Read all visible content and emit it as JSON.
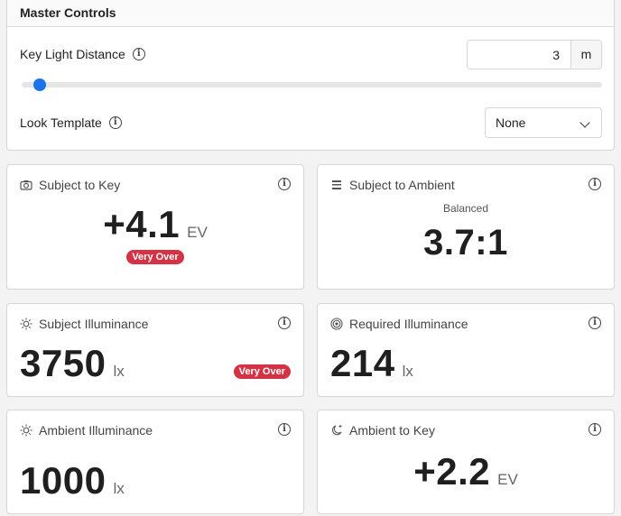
{
  "master": {
    "title": "Master Controls",
    "distance_label": "Key Light Distance",
    "distance_value": "3",
    "distance_unit": "m",
    "slider_fraction": 0.02,
    "template_label": "Look Template",
    "template_value": "None"
  },
  "cards": {
    "subject_to_key": {
      "title": "Subject to Key",
      "value": "+4.1",
      "unit": "EV",
      "badge": "Very Over",
      "icon": "camera-icon"
    },
    "subject_to_ambient": {
      "title": "Subject to Ambient",
      "subtitle": "Balanced",
      "value": "3.7:1",
      "icon": "bars-icon"
    },
    "subject_illuminance": {
      "title": "Subject Illuminance",
      "value": "3750",
      "unit": "lx",
      "badge": "Very Over",
      "icon": "sun-icon"
    },
    "required_illuminance": {
      "title": "Required Illuminance",
      "value": "214",
      "unit": "lx",
      "icon": "target-icon"
    },
    "ambient_illuminance": {
      "title": "Ambient Illuminance",
      "value": "1000",
      "unit": "lx",
      "icon": "sun-icon"
    },
    "ambient_to_key": {
      "title": "Ambient to Key",
      "value": "+2.2",
      "unit": "EV",
      "icon": "moon-sun-icon"
    }
  },
  "colors": {
    "accent": "#1a73e8",
    "badge": "#d33344"
  }
}
